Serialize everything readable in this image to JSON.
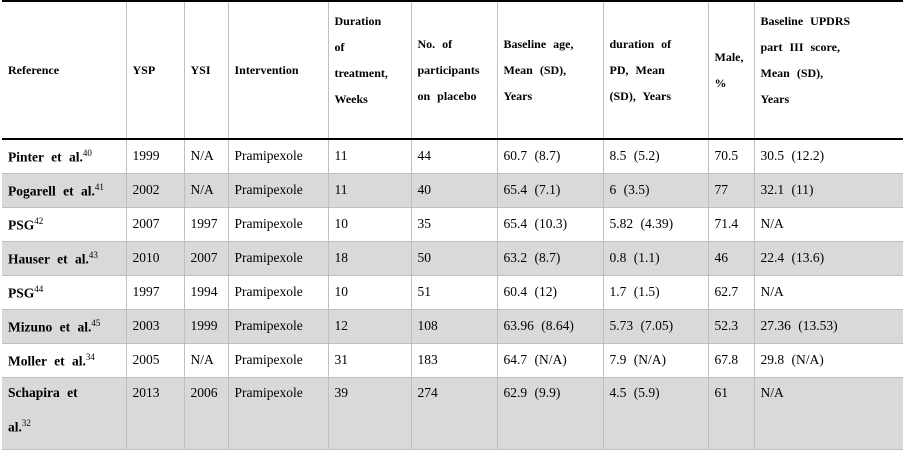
{
  "headers": {
    "reference": "Reference",
    "ysp": "YSP",
    "ysi": "YSI",
    "intervention": "Intervention",
    "duration_1": "Duration",
    "duration_2": "of",
    "duration_3": "treatment,",
    "duration_4": "Weeks",
    "placebo_1": "No.  of",
    "placebo_2": "participants",
    "placebo_3": "on  placebo",
    "age_1": "Baseline  age,",
    "age_2": "Mean  (SD),",
    "age_3": "Years",
    "pd_1": "duration  of",
    "pd_2": "PD,  Mean",
    "pd_3": "(SD),  Years",
    "male_1": "Male,",
    "male_2": "%",
    "updrs_1": "Baseline  UPDRS",
    "updrs_2": "part  III  score,",
    "updrs_3": "Mean  (SD),",
    "updrs_4": "Years"
  },
  "rows": [
    {
      "ref": "Pinter  et  al.",
      "sup": "40",
      "ysp": "1999",
      "ysi": "N/A",
      "intervention": "Pramipexole",
      "weeks": "11",
      "placebo": "44",
      "age": "60.7  (8.7)",
      "pd": "8.5  (5.2)",
      "male": "70.5",
      "updrs": "30.5  (12.2)"
    },
    {
      "ref": "Pogarell  et  al.",
      "sup": "41",
      "ysp": "2002",
      "ysi": "N/A",
      "intervention": "Pramipexole",
      "weeks": "11",
      "placebo": "40",
      "age": "65.4  (7.1)",
      "pd": "6  (3.5)",
      "male": "77",
      "updrs": "32.1  (11)"
    },
    {
      "ref": "PSG",
      "sup": "42",
      "ysp": "2007",
      "ysi": "1997",
      "intervention": "Pramipexole",
      "weeks": "10",
      "placebo": "35",
      "age": "65.4  (10.3)",
      "pd": "5.82  (4.39)",
      "male": "71.4",
      "updrs": "N/A"
    },
    {
      "ref": "Hauser  et  al.",
      "sup": "43",
      "ysp": "2010",
      "ysi": "2007",
      "intervention": "Pramipexole",
      "weeks": "18",
      "placebo": "50",
      "age": "63.2  (8.7)",
      "pd": "0.8  (1.1)",
      "male": "46",
      "updrs": "22.4  (13.6)"
    },
    {
      "ref": "PSG",
      "sup": "44",
      "ysp": "1997",
      "ysi": "1994",
      "intervention": "Pramipexole",
      "weeks": "10",
      "placebo": "51",
      "age": "60.4  (12)",
      "pd": "1.7  (1.5)",
      "male": "62.7",
      "updrs": "N/A"
    },
    {
      "ref": "Mizuno  et  al.",
      "sup": "45",
      "ysp": "2003",
      "ysi": "1999",
      "intervention": "Pramipexole",
      "weeks": "12",
      "placebo": "108",
      "age": "63.96  (8.64)",
      "pd": "5.73  (7.05)",
      "male": "52.3",
      "updrs": "27.36  (13.53)"
    },
    {
      "ref": "Moller  et  al.",
      "sup": "34",
      "ysp": "2005",
      "ysi": "N/A",
      "intervention": "Pramipexole",
      "weeks": "31",
      "placebo": "183",
      "age": "64.7  (N/A)",
      "pd": "7.9  (N/A)",
      "male": "67.8",
      "updrs": "29.8  (N/A)"
    },
    {
      "ref_line1": "Schapira  et",
      "ref_line2": "al.",
      "sup": "32",
      "ysp": "2013",
      "ysi": "2006",
      "intervention": "Pramipexole",
      "weeks": "39",
      "placebo": "274",
      "age": "62.9  (9.9)",
      "pd": "4.5  (5.9)",
      "male": "61",
      "updrs": "N/A"
    }
  ]
}
